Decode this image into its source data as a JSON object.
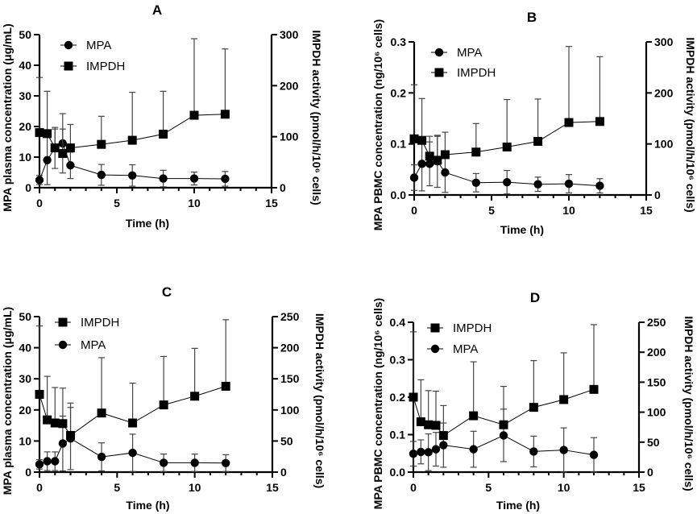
{
  "chart_data": [
    {
      "panel": "A",
      "type": "line",
      "title": "A",
      "xlabel": "Time (h)",
      "ylabel": "MPA plasma concentration (μg/mL)",
      "y2label": "IMPDH activity (pmol/h/10⁶ cells)",
      "xlim": [
        0,
        15
      ],
      "ylim": [
        0,
        50
      ],
      "y2lim": [
        0,
        300
      ],
      "xticks": [
        "0",
        "5",
        "10",
        "15"
      ],
      "xtick_values": [
        0,
        5,
        10,
        15
      ],
      "yticks": [
        "0",
        "10",
        "20",
        "30",
        "40",
        "50"
      ],
      "ytick_values": [
        0,
        10,
        20,
        30,
        40,
        50
      ],
      "y2ticks": [
        "0",
        "100",
        "200",
        "300"
      ],
      "y2tick_values": [
        0,
        100,
        200,
        300
      ],
      "legend_order": [
        "MPA",
        "IMPDH"
      ],
      "legend_position": "top-left",
      "x": [
        0,
        0.5,
        1,
        1.5,
        2,
        4,
        6,
        8,
        10,
        12
      ],
      "series": [
        {
          "name": "MPA",
          "marker": "circle",
          "axis": "left",
          "values": [
            2.5,
            9,
            13,
            14.5,
            7.3,
            4.2,
            4,
            3,
            3,
            2.9
          ],
          "error": [
            1.5,
            8,
            6.7,
            9.7,
            4.3,
            3.4,
            3.5,
            2.7,
            2.1,
            2.4
          ]
        },
        {
          "name": "IMPDH",
          "marker": "square",
          "axis": "right",
          "values": [
            108,
            106,
            78,
            67,
            78,
            85,
            93,
            105,
            142,
            144
          ],
          "error": [
            108,
            83,
            37,
            48,
            46,
            55,
            94,
            84,
            150,
            128
          ]
        }
      ]
    },
    {
      "panel": "B",
      "type": "line",
      "title": "B",
      "xlabel": "Time (h)",
      "ylabel": "MPA PBMC concentration (ng/10⁶ cells)",
      "y2label": "IMPDH activity (pmol/h/10⁶ cells)",
      "xlim": [
        0,
        15
      ],
      "ylim": [
        0,
        0.3
      ],
      "y2lim": [
        0,
        300
      ],
      "xticks": [
        "0",
        "5",
        "10",
        "15"
      ],
      "xtick_values": [
        0,
        5,
        10,
        15
      ],
      "yticks": [
        "0.0",
        "0.1",
        "0.2",
        "0.3"
      ],
      "ytick_values": [
        0,
        0.1,
        0.2,
        0.3
      ],
      "y2ticks": [
        "0",
        "100",
        "200",
        "300"
      ],
      "y2tick_values": [
        0,
        100,
        200,
        300
      ],
      "legend_order": [
        "MPA",
        "IMPDH"
      ],
      "legend_position": "top-left",
      "x": [
        0,
        0.5,
        1,
        1.5,
        2,
        4,
        6,
        8,
        10,
        12
      ],
      "series": [
        {
          "name": "MPA",
          "marker": "circle",
          "axis": "left",
          "values": [
            0.034,
            0.061,
            0.061,
            0.066,
            0.044,
            0.024,
            0.025,
            0.021,
            0.022,
            0.018
          ],
          "error": [
            0.025,
            0.053,
            0.043,
            0.051,
            0.039,
            0.018,
            0.023,
            0.014,
            0.018,
            0.014
          ]
        },
        {
          "name": "IMPDH",
          "marker": "square",
          "axis": "right",
          "values": [
            110,
            107,
            76,
            68,
            79,
            84,
            94,
            105,
            142,
            144
          ],
          "error": [
            106,
            82,
            39,
            47,
            44,
            56,
            93,
            83,
            149,
            127
          ]
        }
      ]
    },
    {
      "panel": "C",
      "type": "line",
      "title": "C",
      "xlabel": "Time (h)",
      "ylabel": "MPA plasma concentration (μg/mL)",
      "y2label": "IMPDH activity (pmol/h/10⁶ cells)",
      "xlim": [
        0,
        15
      ],
      "ylim": [
        0,
        50
      ],
      "y2lim": [
        0,
        250
      ],
      "xticks": [
        "0",
        "5",
        "10",
        "15"
      ],
      "xtick_values": [
        0,
        5,
        10,
        15
      ],
      "yticks": [
        "0",
        "10",
        "20",
        "30",
        "40",
        "50"
      ],
      "ytick_values": [
        0,
        10,
        20,
        30,
        40,
        50
      ],
      "y2ticks": [
        "0",
        "50",
        "100",
        "150",
        "200",
        "250"
      ],
      "y2tick_values": [
        0,
        50,
        100,
        150,
        200,
        250
      ],
      "legend_order": [
        "IMPDH",
        "MPA"
      ],
      "legend_position": "top-left",
      "x": [
        0,
        0.5,
        1,
        1.5,
        2,
        4,
        6,
        8,
        10,
        12
      ],
      "series": [
        {
          "name": "MPA",
          "marker": "circle",
          "axis": "left",
          "values": [
            2.5,
            3.5,
            3.5,
            9.2,
            10.8,
            4.9,
            6.2,
            3,
            3,
            2.9
          ],
          "error": [
            1.5,
            3,
            3,
            8.8,
            10,
            4.5,
            6,
            2.8,
            2.8,
            2.7
          ]
        },
        {
          "name": "IMPDH",
          "marker": "square",
          "axis": "right",
          "values": [
            125,
            84,
            79,
            78,
            59,
            95,
            79,
            108,
            122,
            138
          ],
          "error": [
            110,
            70,
            57,
            57,
            52,
            89,
            64,
            78,
            77,
            107
          ]
        }
      ]
    },
    {
      "panel": "D",
      "type": "line",
      "title": "D",
      "xlabel": "Time (h)",
      "ylabel": "MPA PBMC concentration (ng/10⁶ cells)",
      "y2label": "IMPDH activity (pmol/h/10⁶ cells)",
      "xlim": [
        0,
        15
      ],
      "ylim": [
        0,
        0.4
      ],
      "y2lim": [
        0,
        250
      ],
      "xticks": [
        "0",
        "5",
        "10",
        "15"
      ],
      "xtick_values": [
        0,
        5,
        10,
        15
      ],
      "yticks": [
        "0.0",
        "0.1",
        "0.2",
        "0.3",
        "0.4"
      ],
      "ytick_values": [
        0,
        0.1,
        0.2,
        0.3,
        0.4
      ],
      "y2ticks": [
        "0",
        "50",
        "100",
        "150",
        "200",
        "250"
      ],
      "y2tick_values": [
        0,
        50,
        100,
        150,
        200,
        250
      ],
      "legend_order": [
        "IMPDH",
        "MPA"
      ],
      "legend_position": "top-left",
      "x": [
        0,
        0.5,
        1,
        1.5,
        2,
        4,
        6,
        8,
        10,
        12
      ],
      "series": [
        {
          "name": "MPA",
          "marker": "circle",
          "axis": "left",
          "values": [
            0.049,
            0.054,
            0.053,
            0.061,
            0.072,
            0.061,
            0.098,
            0.055,
            0.059,
            0.046
          ],
          "error": [
            0.033,
            0.032,
            0.049,
            0.045,
            0.059,
            0.048,
            0.07,
            0.041,
            0.059,
            0.046
          ]
        },
        {
          "name": "IMPDH",
          "marker": "square",
          "axis": "right",
          "values": [
            125,
            84,
            79,
            78,
            61,
            94,
            79,
            108,
            121,
            138
          ],
          "error": [
            109,
            70,
            57,
            57,
            50,
            90,
            64,
            78,
            78,
            108
          ]
        }
      ]
    }
  ]
}
